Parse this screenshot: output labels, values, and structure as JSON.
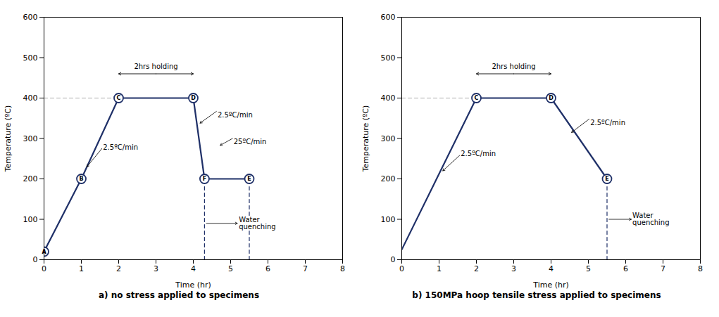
{
  "chart_data": [
    {
      "type": "line",
      "caption": "a)  no stress applied to specimens",
      "xlabel": "Time (hr)",
      "ylabel": "Temperature (ºC)",
      "xlim": [
        0,
        8
      ],
      "ylim": [
        0,
        600
      ],
      "xticks": [
        0,
        1,
        2,
        3,
        4,
        5,
        6,
        7,
        8
      ],
      "yticks": [
        0,
        100,
        200,
        300,
        400,
        500,
        600
      ],
      "series": [
        {
          "x": [
            0,
            2
          ],
          "values": [
            400,
            400
          ],
          "color": "#aaaaaa",
          "line_style": "dashed"
        },
        {
          "x": [
            4.3,
            4.3
          ],
          "values": [
            0,
            200
          ],
          "color": "#1f3068",
          "line_style": "dashed"
        },
        {
          "x": [
            5.5,
            5.5
          ],
          "values": [
            0,
            200
          ],
          "color": "#1f3068",
          "line_style": "dashed"
        },
        {
          "x": [
            0,
            1,
            2,
            4,
            4.3,
            5.5
          ],
          "values": [
            20,
            200,
            400,
            400,
            200,
            200
          ],
          "color": "#1f3068",
          "line_style": "solid"
        }
      ],
      "points": {
        "labels": [
          "A",
          "B",
          "C",
          "D",
          "F",
          "E"
        ],
        "x": [
          0,
          1,
          2,
          4,
          4.3,
          5.5
        ],
        "values": [
          20,
          200,
          400,
          400,
          200,
          200
        ],
        "color": "#1f3068",
        "marker": "circle"
      },
      "annotations": [
        {
          "text": "2hrs holding",
          "span": [
            2,
            4
          ],
          "y": 460
        },
        {
          "text": "2.5ºC/min",
          "x": 1.58,
          "y": 278,
          "arrow_from": [
            1.55,
            275
          ],
          "arrow_to": [
            1.15,
            230
          ]
        },
        {
          "text": "2.5ºC/min",
          "x": 4.65,
          "y": 358,
          "arrow_from": [
            4.62,
            367
          ],
          "arrow_to": [
            4.18,
            338
          ]
        },
        {
          "text": "25ºC/min",
          "x": 5.08,
          "y": 292,
          "arrow_from": [
            5.05,
            300
          ],
          "arrow_to": [
            4.72,
            283
          ]
        },
        {
          "text": "Water\nquenching",
          "x": 5.22,
          "y": 90,
          "arrow_from": [
            4.35,
            90
          ],
          "arrow_to": [
            5.18,
            90
          ]
        }
      ]
    },
    {
      "type": "line",
      "caption": "b)  150MPa hoop tensile stress applied to specimens",
      "xlabel": "Time (hr)",
      "ylabel": "Temperature (ºC)",
      "xlim": [
        0,
        8
      ],
      "ylim": [
        0,
        600
      ],
      "xticks": [
        0,
        1,
        2,
        3,
        4,
        5,
        6,
        7,
        8
      ],
      "yticks": [
        0,
        100,
        200,
        300,
        400,
        500,
        600
      ],
      "series": [
        {
          "x": [
            0,
            2
          ],
          "values": [
            400,
            400
          ],
          "color": "#aaaaaa",
          "line_style": "dashed"
        },
        {
          "x": [
            5.5,
            5.5
          ],
          "values": [
            0,
            200
          ],
          "color": "#1f3068",
          "line_style": "dashed"
        },
        {
          "x": [
            0,
            2,
            4,
            5.5
          ],
          "values": [
            25,
            400,
            400,
            200
          ],
          "color": "#1f3068",
          "line_style": "solid"
        }
      ],
      "points": {
        "labels": [
          "C",
          "D",
          "E"
        ],
        "x": [
          2,
          4,
          5.5
        ],
        "values": [
          400,
          400,
          200
        ],
        "color": "#1f3068",
        "marker": "circle"
      },
      "annotations": [
        {
          "text": "2hrs holding",
          "span": [
            2,
            4
          ],
          "y": 460
        },
        {
          "text": "2.5ºC/min",
          "x": 1.58,
          "y": 262,
          "arrow_from": [
            1.55,
            258
          ],
          "arrow_to": [
            1.1,
            220
          ]
        },
        {
          "text": "2.5ºC/min",
          "x": 5.05,
          "y": 338,
          "arrow_from": [
            5.02,
            348
          ],
          "arrow_to": [
            4.55,
            315
          ]
        },
        {
          "text": "Water\nquenching",
          "x": 6.18,
          "y": 100,
          "arrow_from": [
            5.55,
            100
          ],
          "arrow_to": [
            6.15,
            100
          ]
        }
      ]
    }
  ]
}
